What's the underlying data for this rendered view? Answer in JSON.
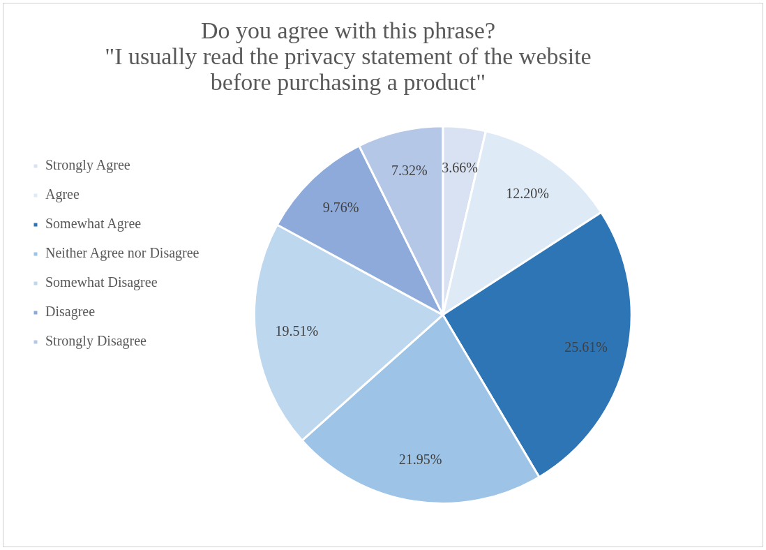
{
  "chart_data": {
    "type": "pie",
    "title": "Do you agree with this phrase?\n\"I usually read the privacy statement of the website\nbefore purchasing a product\"",
    "categories": [
      "Strongly Agree",
      "Agree",
      "Somewhat Agree",
      "Neither Agree nor Disagree",
      "Somewhat Disagree",
      "Disagree",
      "Strongly Disagree"
    ],
    "values": [
      3.66,
      12.2,
      25.61,
      21.95,
      19.51,
      9.76,
      7.32
    ],
    "value_labels": [
      "3.66%",
      "12.20%",
      "25.61%",
      "21.95%",
      "19.51%",
      "9.76%",
      "7.32%"
    ],
    "colors": [
      "#d9e2f3",
      "#deebf7",
      "#2e75b6",
      "#9dc3e6",
      "#bdd7ee",
      "#8eaadb",
      "#b4c7e7"
    ],
    "legend": "left"
  }
}
